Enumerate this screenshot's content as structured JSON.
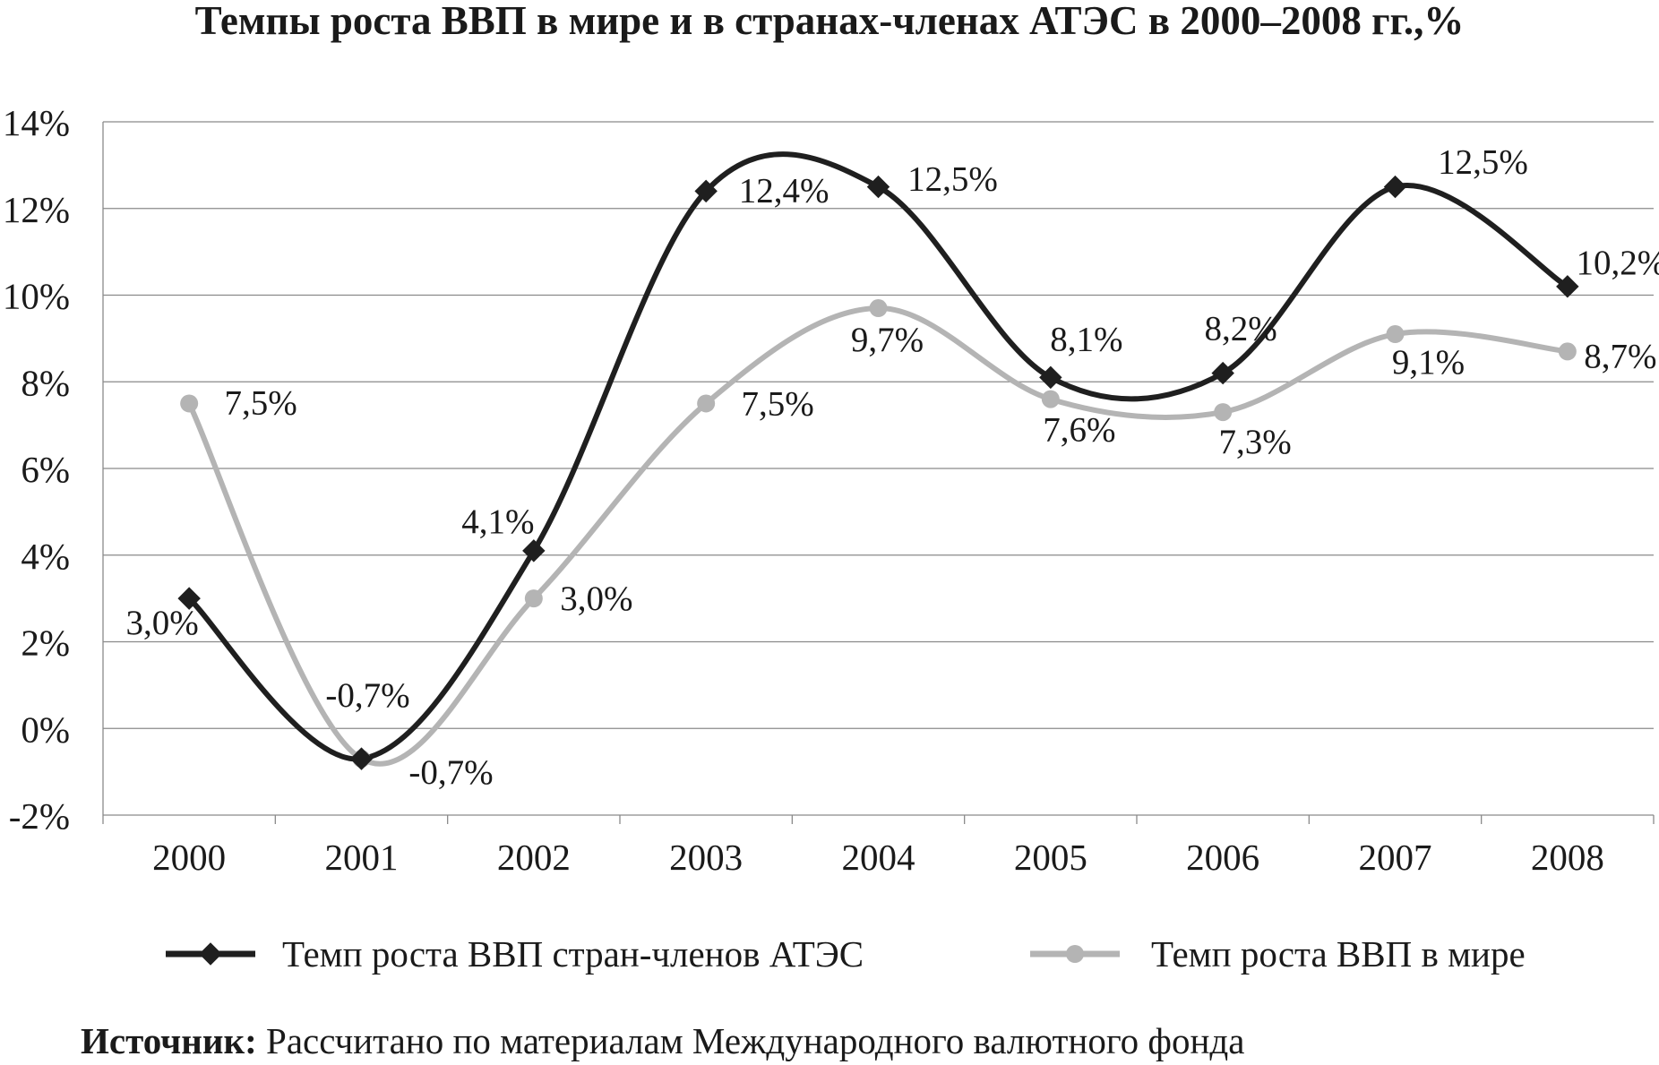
{
  "colors": {
    "series1": "#1f1f1f",
    "series2": "#b4b4b4",
    "grid": "#8a8a8a",
    "text": "#1a1a1a"
  },
  "chart_data": {
    "type": "line",
    "title": "Темпы роста ВВП в мире и в странах-членах АТЭС в 2000–2008 гг.,%",
    "x": [
      "2000",
      "2001",
      "2002",
      "2003",
      "2004",
      "2005",
      "2006",
      "2007",
      "2008"
    ],
    "ylim": [
      -2,
      14
    ],
    "yticks": [
      "-2%",
      "0%",
      "2%",
      "4%",
      "6%",
      "8%",
      "10%",
      "12%",
      "14%"
    ],
    "grid": true,
    "smooth": true,
    "legend_position": "bottom",
    "series": [
      {
        "name": "Темп роста ВВП стран-членов АТЭС",
        "marker": "diamond",
        "color": "#1f1f1f",
        "values": [
          3.0,
          -0.7,
          4.1,
          12.4,
          12.5,
          8.1,
          8.2,
          12.5,
          10.2
        ],
        "labels": [
          "3,0%",
          "-0,7%",
          "4,1%",
          "12,4%",
          "12,5%",
          "8,1%",
          "8,2%",
          "12,5%",
          "10,2%"
        ]
      },
      {
        "name": "Темп роста ВВП в мире",
        "marker": "circle",
        "color": "#b4b4b4",
        "values": [
          7.5,
          -0.7,
          3.0,
          7.5,
          9.7,
          7.6,
          7.3,
          9.1,
          8.7
        ],
        "labels": [
          "7,5%",
          "-0,7%",
          "3,0%",
          "7,5%",
          "9,7%",
          "7,6%",
          "7,3%",
          "9,1%",
          "8,7%"
        ]
      }
    ]
  },
  "source": {
    "label": "Источник:",
    "text": "Рассчитано по материалам Международного валютного фонда"
  }
}
